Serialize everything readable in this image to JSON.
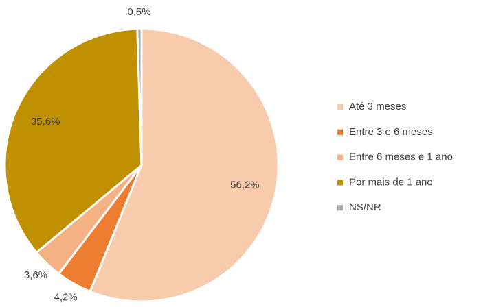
{
  "chart_data": {
    "type": "pie",
    "categories": [
      "Até 3 meses",
      "Entre 3 e 6 meses",
      "Entre 6 meses e 1 ano",
      "Por mais de 1 ano",
      "NS/NR"
    ],
    "values": [
      56.2,
      4.2,
      3.6,
      35.6,
      0.5
    ],
    "value_labels": [
      "56,2%",
      "4,2%",
      "3,6%",
      "35,6%",
      "0,5%"
    ],
    "colors": [
      "#f8cbad",
      "#ed7d31",
      "#f4b183",
      "#bf9000",
      "#a5a5a5"
    ],
    "legend": "right"
  }
}
